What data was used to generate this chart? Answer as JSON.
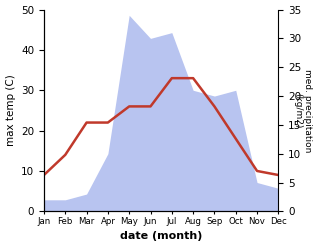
{
  "months": [
    "Jan",
    "Feb",
    "Mar",
    "Apr",
    "May",
    "Jun",
    "Jul",
    "Aug",
    "Sep",
    "Oct",
    "Nov",
    "Dec"
  ],
  "max_temp": [
    9,
    14,
    22,
    22,
    26,
    26,
    33,
    33,
    26,
    18,
    10,
    9
  ],
  "precipitation": [
    2,
    2,
    3,
    10,
    34,
    30,
    31,
    21,
    20,
    21,
    5,
    4
  ],
  "temp_color": "#c0392b",
  "precip_fill_color": "#b8c4f0",
  "xlabel": "date (month)",
  "ylabel_left": "max temp (C)",
  "ylabel_right": "med. precipitation\n(kg/m2)",
  "ylim_left": [
    0,
    50
  ],
  "ylim_right": [
    0,
    35
  ],
  "background_color": "#ffffff"
}
